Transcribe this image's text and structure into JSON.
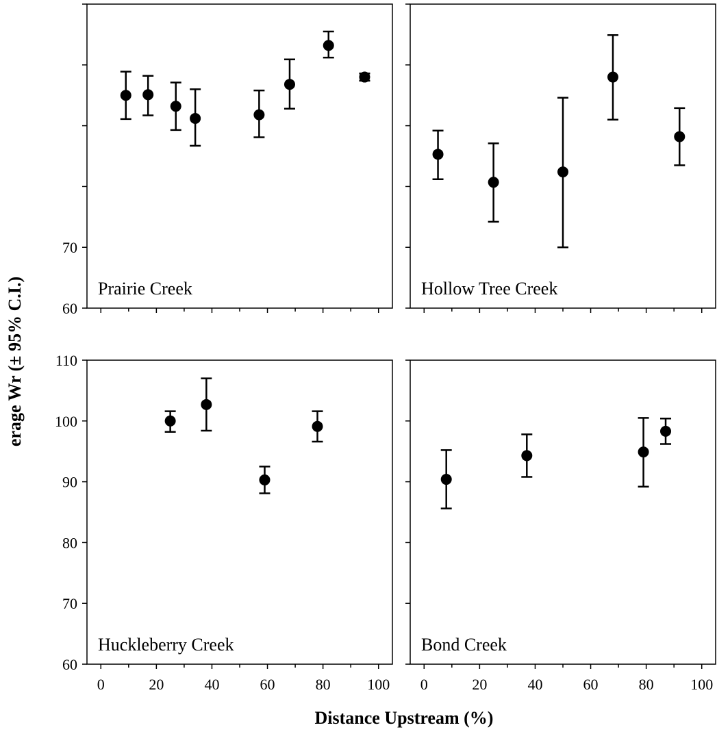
{
  "chart_data": {
    "type": "scatter",
    "xlabel": "Distance Upstream (%)",
    "ylabel": "erage Wr (± 95% C.I.)",
    "xlim": [
      -5,
      105
    ],
    "ylim": [
      60,
      110
    ],
    "x_ticks": [
      0,
      20,
      40,
      60,
      80,
      100
    ],
    "y_ticks": [
      60,
      70,
      80,
      90,
      100,
      110
    ],
    "panels": [
      {
        "label": "Prairie Creek",
        "points": [
          {
            "x": 9,
            "y": 95,
            "low": 91.1,
            "high": 98.9
          },
          {
            "x": 17,
            "y": 95.1,
            "low": 91.7,
            "high": 98.2
          },
          {
            "x": 27,
            "y": 93.2,
            "low": 89.3,
            "high": 97.1
          },
          {
            "x": 34,
            "y": 91.2,
            "low": 86.7,
            "high": 96
          },
          {
            "x": 57,
            "y": 91.8,
            "low": 88.1,
            "high": 95.8
          },
          {
            "x": 68,
            "y": 96.8,
            "low": 92.8,
            "high": 100.9
          },
          {
            "x": 82,
            "y": 103.2,
            "low": 101.2,
            "high": 105.5
          },
          {
            "x": 95,
            "y": 98,
            "low": 97.4,
            "high": 98.6
          }
        ]
      },
      {
        "label": "Hollow Tree Creek",
        "points": [
          {
            "x": 5,
            "y": 85.3,
            "low": 81.2,
            "high": 89.2
          },
          {
            "x": 25,
            "y": 80.7,
            "low": 74.2,
            "high": 87.1
          },
          {
            "x": 50,
            "y": 82.4,
            "low": 70,
            "high": 94.6
          },
          {
            "x": 68,
            "y": 98,
            "low": 91,
            "high": 104.9
          },
          {
            "x": 92,
            "y": 88.2,
            "low": 83.5,
            "high": 92.9
          }
        ]
      },
      {
        "label": "Huckleberry Creek",
        "points": [
          {
            "x": 25,
            "y": 100,
            "low": 98.2,
            "high": 101.6
          },
          {
            "x": 38,
            "y": 102.7,
            "low": 98.4,
            "high": 107
          },
          {
            "x": 59,
            "y": 90.3,
            "low": 88.1,
            "high": 92.5
          },
          {
            "x": 78,
            "y": 99.1,
            "low": 96.6,
            "high": 101.6
          }
        ]
      },
      {
        "label": "Bond Creek",
        "points": [
          {
            "x": 8,
            "y": 90.4,
            "low": 85.6,
            "high": 95.2
          },
          {
            "x": 37,
            "y": 94.3,
            "low": 90.8,
            "high": 97.8
          },
          {
            "x": 79,
            "y": 94.9,
            "low": 89.2,
            "high": 100.5
          },
          {
            "x": 87,
            "y": 98.3,
            "low": 96.2,
            "high": 100.4
          }
        ]
      }
    ]
  }
}
